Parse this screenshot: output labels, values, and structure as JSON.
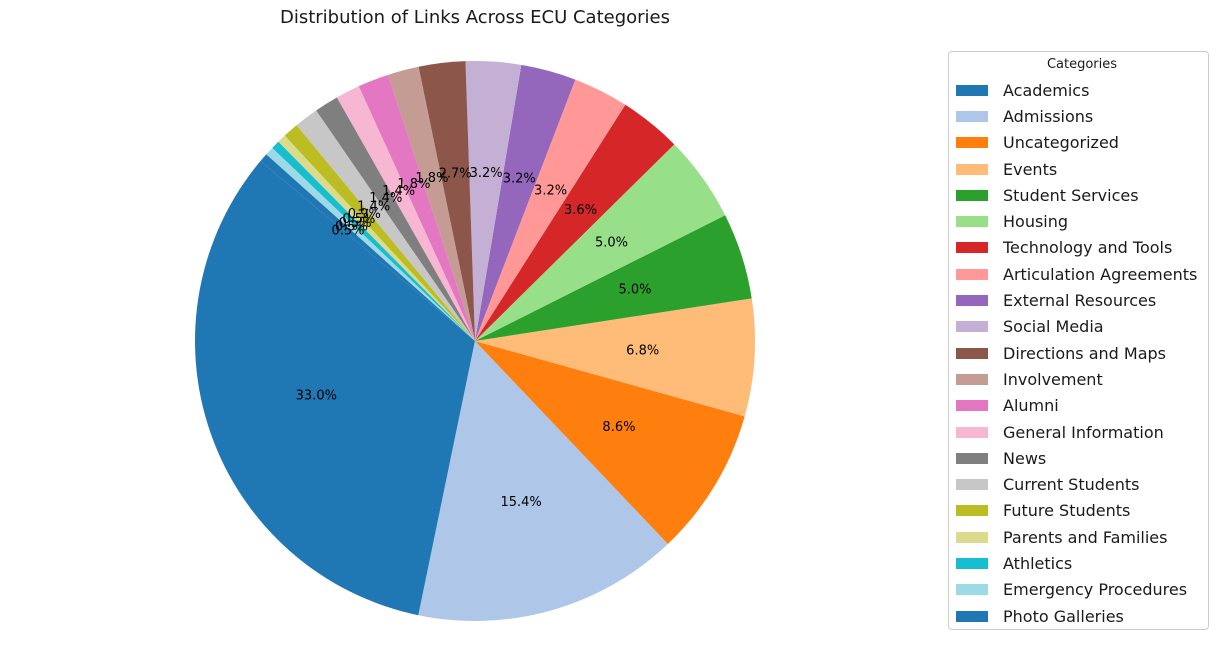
{
  "chart_data": {
    "type": "pie",
    "title": "Distribution of Links Across ECU Categories",
    "legend_title": "Categories",
    "legend_position": "right",
    "start_angle_deg": 140,
    "direction": "counterclockwise",
    "slices": [
      {
        "label": "Academics",
        "value": 33.0,
        "pct_label": "33.0%",
        "color": "#1f77b4"
      },
      {
        "label": "Admissions",
        "value": 15.4,
        "pct_label": "15.4%",
        "color": "#aec7e8"
      },
      {
        "label": "Uncategorized",
        "value": 8.6,
        "pct_label": "8.6%",
        "color": "#ff7f0e"
      },
      {
        "label": "Events",
        "value": 6.8,
        "pct_label": "6.8%",
        "color": "#ffbb78"
      },
      {
        "label": "Student Services",
        "value": 5.0,
        "pct_label": "5.0%",
        "color": "#2ca02c"
      },
      {
        "label": "Housing",
        "value": 5.0,
        "pct_label": "5.0%",
        "color": "#98df8a"
      },
      {
        "label": "Technology and Tools",
        "value": 3.6,
        "pct_label": "3.6%",
        "color": "#d62728"
      },
      {
        "label": "Articulation Agreements",
        "value": 3.2,
        "pct_label": "3.2%",
        "color": "#ff9896"
      },
      {
        "label": "External Resources",
        "value": 3.2,
        "pct_label": "3.2%",
        "color": "#9467bd"
      },
      {
        "label": "Social Media",
        "value": 3.2,
        "pct_label": "3.2%",
        "color": "#c5b0d5"
      },
      {
        "label": "Directions and Maps",
        "value": 2.7,
        "pct_label": "2.7%",
        "color": "#8c564b"
      },
      {
        "label": "Involvement",
        "value": 1.8,
        "pct_label": "1.8%",
        "color": "#c49c94"
      },
      {
        "label": "Alumni",
        "value": 1.8,
        "pct_label": "1.8%",
        "color": "#e377c2"
      },
      {
        "label": "General Information",
        "value": 1.4,
        "pct_label": "1.4%",
        "color": "#f7b6d2"
      },
      {
        "label": "News",
        "value": 1.4,
        "pct_label": "1.4%",
        "color": "#7f7f7f"
      },
      {
        "label": "Current Students",
        "value": 1.4,
        "pct_label": "1.4%",
        "color": "#c7c7c7"
      },
      {
        "label": "Future Students",
        "value": 0.9,
        "pct_label": "0.9%",
        "color": "#bcbd22"
      },
      {
        "label": "Parents and Families",
        "value": 0.5,
        "pct_label": "0.5%",
        "color": "#dbdb8d"
      },
      {
        "label": "Athletics",
        "value": 0.5,
        "pct_label": "0.5%",
        "color": "#17becf"
      },
      {
        "label": "Emergency Procedures",
        "value": 0.5,
        "pct_label": "0.5%",
        "color": "#9edae5"
      },
      {
        "label": "Photo Galleries",
        "value": 0.5,
        "pct_label": "0.5%",
        "color": "#1f77b4"
      }
    ]
  }
}
